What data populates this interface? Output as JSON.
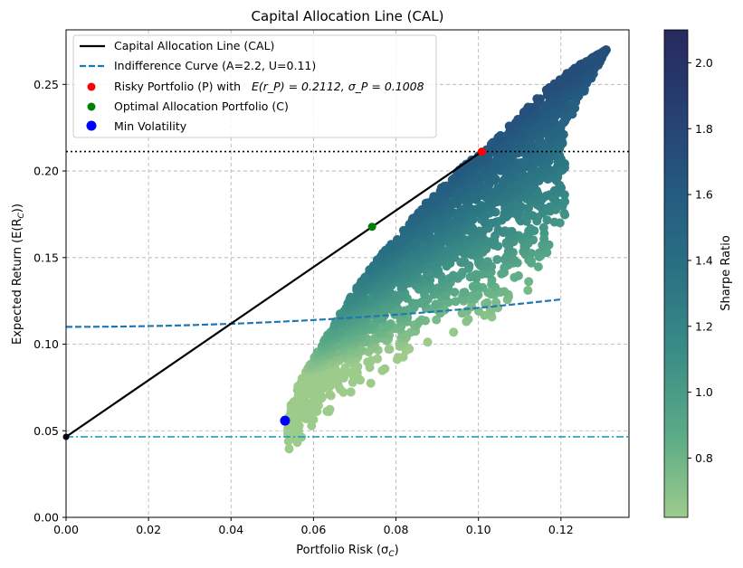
{
  "chart_data": {
    "type": "scatter",
    "title": "Capital Allocation Line (CAL)",
    "xlabel": "Portfolio Risk (σ",
    "xlabel_sub": "C",
    "xlabel_end": ")",
    "ylabel": "Expected Return (E(R",
    "ylabel_sub": "C",
    "ylabel_end": "))",
    "xlim": [
      0.0,
      0.1365
    ],
    "ylim": [
      0.0,
      0.2815
    ],
    "xticks": [
      0.0,
      0.02,
      0.04,
      0.06,
      0.08,
      0.1,
      0.12
    ],
    "xtick_labels": [
      "0.00",
      "0.02",
      "0.04",
      "0.06",
      "0.08",
      "0.10",
      "0.12"
    ],
    "yticks": [
      0.0,
      0.05,
      0.1,
      0.15,
      0.2,
      0.25
    ],
    "ytick_labels": [
      "0.00",
      "0.05",
      "0.10",
      "0.15",
      "0.20",
      "0.25"
    ],
    "grid": true,
    "legend_position": "top-left",
    "risk_free_rate": 0.0465,
    "risky_portfolio": {
      "sigma": 0.1008,
      "return": 0.2112
    },
    "optimal_portfolio": {
      "sigma": 0.0742,
      "return": 0.1678
    },
    "min_volatility": {
      "sigma": 0.0531,
      "return": 0.0558
    },
    "indifference_curve": {
      "A": 2.2,
      "U": 0.11,
      "sigma_range": [
        0.0,
        0.12
      ]
    },
    "reference_lines": {
      "horizontal_dotted_y": 0.2112,
      "horizontal_dashdot_y": 0.0465
    },
    "scatter_cloud": {
      "description": "simulated random portfolios colored by Sharpe ratio",
      "sigma_range": [
        0.052,
        0.131
      ],
      "return_range": [
        0.034,
        0.27
      ],
      "upper_envelope": [
        [
          0.0531,
          0.0558
        ],
        [
          0.056,
          0.075
        ],
        [
          0.06,
          0.092
        ],
        [
          0.065,
          0.112
        ],
        [
          0.07,
          0.131
        ],
        [
          0.075,
          0.148
        ],
        [
          0.08,
          0.161
        ],
        [
          0.085,
          0.176
        ],
        [
          0.09,
          0.188
        ],
        [
          0.095,
          0.2
        ],
        [
          0.1008,
          0.2112
        ],
        [
          0.105,
          0.22
        ],
        [
          0.11,
          0.232
        ],
        [
          0.115,
          0.244
        ],
        [
          0.12,
          0.254
        ],
        [
          0.125,
          0.262
        ],
        [
          0.131,
          0.27
        ]
      ],
      "lower_envelope": [
        [
          0.0531,
          0.0558
        ],
        [
          0.054,
          0.035
        ],
        [
          0.058,
          0.046
        ],
        [
          0.062,
          0.056
        ],
        [
          0.07,
          0.067
        ],
        [
          0.08,
          0.083
        ],
        [
          0.09,
          0.098
        ],
        [
          0.1,
          0.107
        ],
        [
          0.106,
          0.114
        ],
        [
          0.112,
          0.127
        ],
        [
          0.118,
          0.131
        ],
        [
          0.121,
          0.13
        ],
        [
          0.119,
          0.16
        ],
        [
          0.117,
          0.175
        ]
      ]
    },
    "series": [
      {
        "name": "Capital Allocation Line (CAL)",
        "style": "solid",
        "color": "#000000"
      },
      {
        "name": "Indifference Curve (A=2.2, U=0.11)",
        "style": "dashed",
        "color": "#1f77b4"
      },
      {
        "name": "Risky Portfolio (P) with",
        "math": "E(r_P) = 0.2112, σ_P = 0.1008",
        "color": "#ff0000"
      },
      {
        "name": "Optimal Allocation Portfolio (C)",
        "color": "#008000"
      },
      {
        "name": "Min Volatility",
        "color": "#0000ff"
      }
    ],
    "colorbar": {
      "label": "Sharpe Ratio",
      "range": [
        0.62,
        2.1
      ],
      "ticks": [
        0.8,
        1.0,
        1.2,
        1.4,
        1.6,
        1.8,
        2.0
      ],
      "tick_labels": [
        "0.8",
        "1.0",
        "1.2",
        "1.4",
        "1.6",
        "1.8",
        "2.0"
      ],
      "colormap": [
        "#9dcb8c",
        "#5cab87",
        "#3b8d86",
        "#2a7284",
        "#245a80",
        "#263f73",
        "#27295e"
      ]
    }
  }
}
